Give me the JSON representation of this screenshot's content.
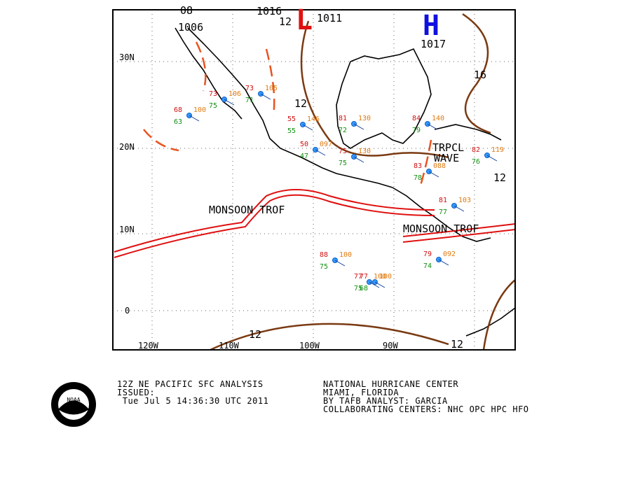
{
  "map": {
    "longitude_labels": [
      "120W",
      "110W",
      "100W",
      "90W"
    ],
    "latitude_labels": [
      "30N",
      "20N",
      "10N",
      "0"
    ],
    "highs": [
      {
        "symbol": "H",
        "pressure": "1017"
      }
    ],
    "lows": [
      {
        "symbol": "L",
        "pressure": "1011"
      }
    ],
    "isobar_labels": [
      "1016",
      "1006",
      "08",
      "12",
      "12",
      "16",
      "12",
      "12",
      "12"
    ],
    "features": [
      "MONSOON TROF",
      "MONSOON TROF",
      "TRPCL",
      "WAVE"
    ],
    "stations": [
      {
        "temp": "73",
        "dew": "75",
        "pressure": "106"
      },
      {
        "temp": "73",
        "dew": "71",
        "pressure": "105"
      },
      {
        "temp": "55",
        "dew": "55",
        "pressure": "146"
      },
      {
        "temp": "50",
        "dew": "47",
        "pressure": "097"
      },
      {
        "temp": "81",
        "dew": "72",
        "pressure": "130"
      },
      {
        "temp": "75",
        "dew": "75",
        "pressure": "130"
      },
      {
        "temp": "88",
        "dew": "75",
        "pressure": "100"
      },
      {
        "temp": "77",
        "dew": "68",
        "pressure": "100"
      },
      {
        "temp": "79",
        "dew": "74",
        "pressure": "092"
      },
      {
        "temp": "81",
        "dew": "77",
        "pressure": "103"
      },
      {
        "temp": "83",
        "dew": "78",
        "pressure": "088"
      },
      {
        "temp": "84",
        "dew": "79",
        "pressure": "140"
      },
      {
        "temp": "77",
        "dew": "75",
        "pressure": "100"
      },
      {
        "temp": "68",
        "dew": "63",
        "pressure": "100"
      },
      {
        "temp": "82",
        "dew": "76",
        "pressure": "119"
      }
    ]
  },
  "footer": {
    "title": "12Z NE PACIFIC SFC ANALYSIS",
    "issued_label": "ISSUED:",
    "issued_time": " Tue Jul 5 14:36:30 UTC 2011",
    "center": "NATIONAL HURRICANE CENTER",
    "location": "MIAMI, FLORIDA",
    "analyst": "BY TAFB ANALYST: GARCIA",
    "collaborating": "COLLABORATING CENTERS: NHC OPC HPC HFO",
    "logo_text": "NOAA"
  }
}
